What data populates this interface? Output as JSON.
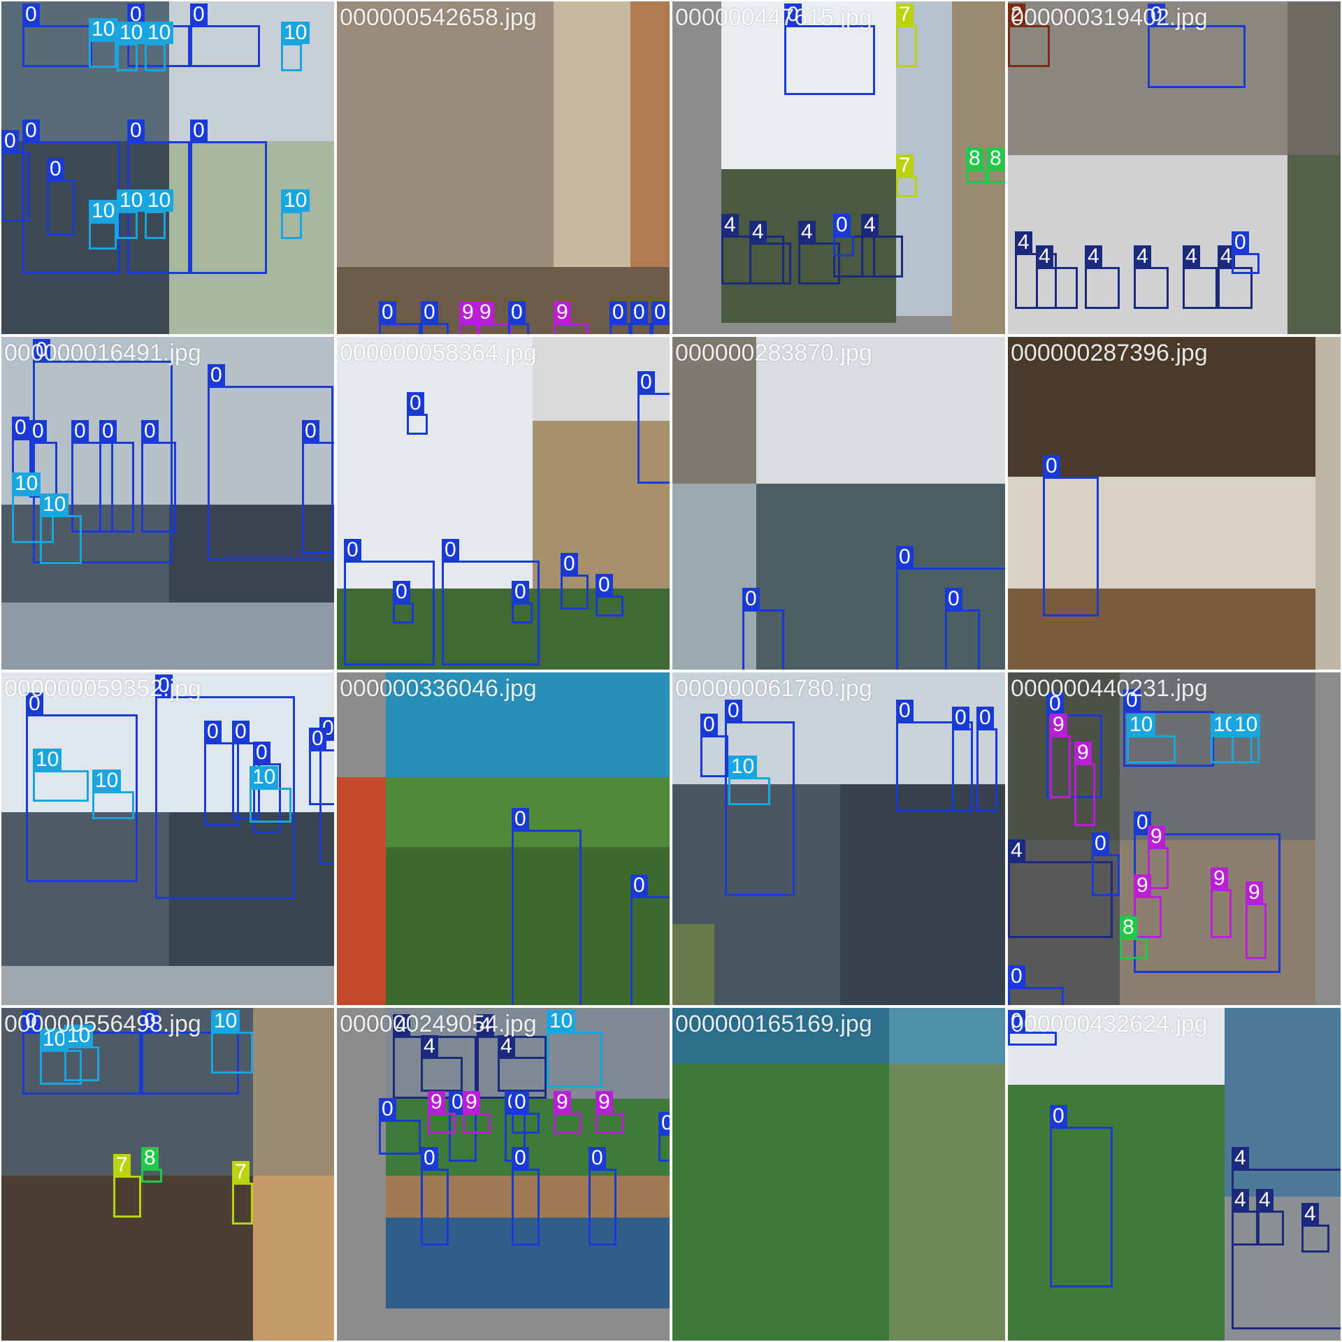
{
  "classes": {
    "0": {
      "color": "#1a3ad6"
    },
    "2": {
      "color": "#7a2b10"
    },
    "4": {
      "color": "#1b2a7c"
    },
    "7": {
      "color": "#b9d40d"
    },
    "8": {
      "color": "#21c94b"
    },
    "9": {
      "color": "#b81fd6"
    },
    "10": {
      "color": "#19a6e0"
    }
  },
  "tiles": [
    {
      "filename": "",
      "bg": [
        "#5b6a78",
        "#c8d0d6",
        "#3d4a55",
        "#a9b6a0"
      ],
      "boxes": [
        {
          "label": "0"
        },
        {
          "label": "0"
        },
        {
          "label": "0"
        },
        {
          "label": "10"
        },
        {
          "label": "10"
        },
        {
          "label": "10"
        },
        {
          "label": "10"
        },
        {
          "label": "0"
        },
        {
          "label": "0"
        },
        {
          "label": "0"
        },
        {
          "label": "10"
        },
        {
          "label": "10"
        },
        {
          "label": "10"
        },
        {
          "label": "10"
        },
        {
          "label": "0"
        },
        {
          "label": "0"
        }
      ]
    },
    {
      "filename": "000000542658.jpg",
      "bg": [
        "#9a8c7a",
        "#c7b9a0",
        "#6e5a48",
        "#b07a52"
      ],
      "boxes": [
        {
          "label": "0"
        },
        {
          "label": "0"
        },
        {
          "label": "9"
        },
        {
          "label": "9"
        },
        {
          "label": "0"
        },
        {
          "label": "9"
        },
        {
          "label": "0"
        },
        {
          "label": "0"
        },
        {
          "label": "0"
        }
      ]
    },
    {
      "filename": "000000447615.jpg",
      "bg": [
        "#e8edf2",
        "#4a5a40",
        "#b7c3cc",
        "#9b8a70"
      ],
      "boxes": [
        {
          "label": "0"
        },
        {
          "label": "7"
        },
        {
          "label": "7"
        },
        {
          "label": "8"
        },
        {
          "label": "8"
        },
        {
          "label": "4"
        },
        {
          "label": "4"
        },
        {
          "label": "4"
        },
        {
          "label": "4"
        },
        {
          "label": "4"
        },
        {
          "label": "0"
        }
      ]
    },
    {
      "filename": "000000319402.jpg",
      "bg": [
        "#8a8680",
        "#cfd1d3",
        "#6d6a63",
        "#55604a"
      ],
      "boxes": [
        {
          "label": "2"
        },
        {
          "label": "0"
        },
        {
          "label": "4"
        },
        {
          "label": "4"
        },
        {
          "label": "4"
        },
        {
          "label": "4"
        },
        {
          "label": "4"
        },
        {
          "label": "4"
        },
        {
          "label": "0"
        }
      ]
    },
    {
      "filename": "000000016491.jpg",
      "bg": [
        "#b5c0c8",
        "#4e5a66",
        "#3a444e",
        "#8e9aa4"
      ],
      "boxes": [
        {
          "label": "0"
        },
        {
          "label": "0"
        },
        {
          "label": "0"
        },
        {
          "label": "0"
        },
        {
          "label": "0"
        },
        {
          "label": "0"
        },
        {
          "label": "0"
        },
        {
          "label": "10"
        },
        {
          "label": "10"
        },
        {
          "label": "10"
        },
        {
          "label": "0"
        }
      ]
    },
    {
      "filename": "000000058364.jpg",
      "bg": [
        "#e6e9ec",
        "#d9dadb",
        "#a7906c",
        "#3f6a36"
      ],
      "boxes": [
        {
          "label": "0"
        },
        {
          "label": "0"
        },
        {
          "label": "0"
        },
        {
          "label": "0"
        },
        {
          "label": "0"
        },
        {
          "label": "0"
        },
        {
          "label": "0"
        },
        {
          "label": "0"
        }
      ]
    },
    {
      "filename": "000000283870.jpg",
      "bg": [
        "#7d7a72",
        "#d8dde0",
        "#4d5f62",
        "#9aa9ad"
      ],
      "boxes": [
        {
          "label": "0"
        },
        {
          "label": "0"
        },
        {
          "label": "0"
        }
      ]
    },
    {
      "filename": "000000287396.jpg",
      "bg": [
        "#4a3a2a",
        "#d9d3c6",
        "#7a5b3c",
        "#bfb6a5"
      ],
      "boxes": [
        {
          "label": "0"
        }
      ]
    },
    {
      "filename": "000000059352.jpg",
      "bg": [
        "#dfe6ec",
        "#4e5a66",
        "#394652",
        "#a0a8ae"
      ],
      "boxes": [
        {
          "label": "0"
        },
        {
          "label": "0"
        },
        {
          "label": "0"
        },
        {
          "label": "0"
        },
        {
          "label": "0"
        },
        {
          "label": "0"
        },
        {
          "label": "10"
        },
        {
          "label": "10"
        },
        {
          "label": "10"
        },
        {
          "label": "0"
        }
      ]
    },
    {
      "filename": "000000336046.jpg",
      "bg": [
        "#2a8fb8",
        "#4f8a3a",
        "#c24a2a",
        "#3f6a2e"
      ],
      "boxes": [
        {
          "label": "0"
        },
        {
          "label": "0"
        }
      ]
    },
    {
      "filename": "000000061780.jpg",
      "bg": [
        "#c9d2d8",
        "#4a5662",
        "#38424c",
        "#6a7a4a"
      ],
      "boxes": [
        {
          "label": "0"
        },
        {
          "label": "10"
        },
        {
          "label": "0"
        },
        {
          "label": "0"
        },
        {
          "label": "0"
        },
        {
          "label": "0"
        }
      ]
    },
    {
      "filename": "000000440231.jpg",
      "bg": [
        "#4c5248",
        "#6a6f72",
        "#8d7f6e",
        "#56585a"
      ],
      "boxes": [
        {
          "label": "0"
        },
        {
          "label": "9"
        },
        {
          "label": "9"
        },
        {
          "label": "0"
        },
        {
          "label": "10"
        },
        {
          "label": "10"
        },
        {
          "label": "10"
        },
        {
          "label": "0"
        },
        {
          "label": "4"
        },
        {
          "label": "0"
        },
        {
          "label": "9"
        },
        {
          "label": "9"
        },
        {
          "label": "9"
        },
        {
          "label": "9"
        },
        {
          "label": "8"
        },
        {
          "label": "0"
        }
      ]
    },
    {
      "filename": "000000556498.jpg",
      "bg": [
        "#4e5a66",
        "#9b8a72",
        "#4c3e32",
        "#c79a6a"
      ],
      "boxes": [
        {
          "label": "0"
        },
        {
          "label": "0"
        },
        {
          "label": "10"
        },
        {
          "label": "10"
        },
        {
          "label": "10"
        },
        {
          "label": "8"
        },
        {
          "label": "8"
        },
        {
          "label": "7"
        },
        {
          "label": "7"
        }
      ]
    },
    {
      "filename": "000000249054.jpg",
      "bg": [
        "#7f8a94",
        "#3e7a3a",
        "#a07a52",
        "#2f5f8a"
      ],
      "boxes": [
        {
          "label": "4"
        },
        {
          "label": "4"
        },
        {
          "label": "4"
        },
        {
          "label": "4"
        },
        {
          "label": "0"
        },
        {
          "label": "10"
        },
        {
          "label": "0"
        },
        {
          "label": "0"
        },
        {
          "label": "9"
        },
        {
          "label": "9"
        },
        {
          "label": "0"
        },
        {
          "label": "9"
        },
        {
          "label": "9"
        },
        {
          "label": "0"
        },
        {
          "label": "0"
        },
        {
          "label": "0"
        },
        {
          "label": "0"
        }
      ]
    },
    {
      "filename": "000000165169.jpg",
      "bg": [
        "#2b6f8c",
        "#3d7a3a",
        "#4f8fa8",
        "#6f8a5a"
      ],
      "boxes": []
    },
    {
      "filename": "000000432624.jpg",
      "bg": [
        "#e3e6ea",
        "#3f7a3a",
        "#4e7a9a",
        "#8a8f94"
      ],
      "boxes": [
        {
          "label": "0"
        },
        {
          "label": "0"
        },
        {
          "label": "4"
        },
        {
          "label": "4"
        },
        {
          "label": "4"
        },
        {
          "label": "4"
        }
      ]
    }
  ]
}
